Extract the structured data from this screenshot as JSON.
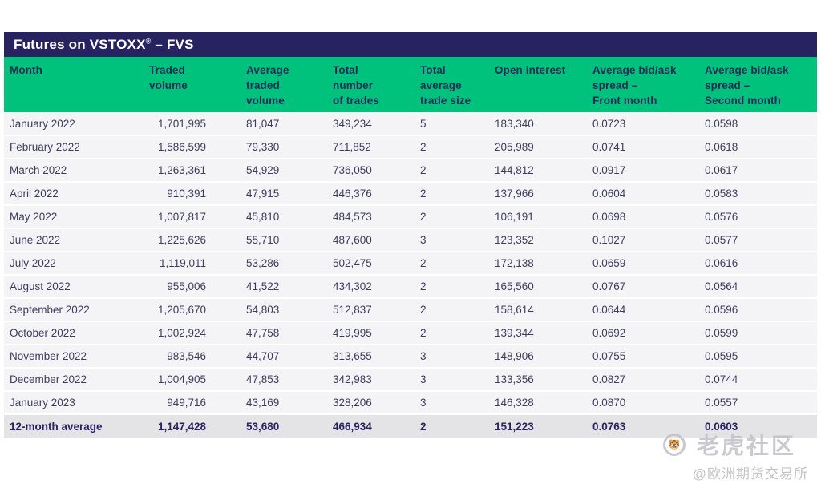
{
  "title": {
    "prefix": "Futures on VSTOXX",
    "registered_mark": "®",
    "suffix": " – FVS"
  },
  "table": {
    "columns": [
      {
        "id": "month",
        "label": "Month"
      },
      {
        "id": "traded_volume",
        "label": "Traded\nvolume"
      },
      {
        "id": "average_traded_volume",
        "label": "Average\ntraded\nvolume"
      },
      {
        "id": "total_number_of_trades",
        "label": "Total\nnumber\nof trades"
      },
      {
        "id": "total_average_trade_size",
        "label": "Total\naverage\ntrade size"
      },
      {
        "id": "open_interest",
        "label": "Open interest"
      },
      {
        "id": "avg_bid_ask_spread_front_month",
        "label": "Average bid/ask\nspread –\nFront month"
      },
      {
        "id": "avg_bid_ask_spread_second_month",
        "label": "Average bid/ask\nspread –\nSecond month"
      }
    ],
    "rows": [
      [
        "January 2022",
        "1,701,995",
        "81,047",
        "349,234",
        "5",
        "183,340",
        "0.0723",
        "0.0598"
      ],
      [
        "February 2022",
        "1,586,599",
        "79,330",
        "711,852",
        "2",
        "205,989",
        "0.0741",
        "0.0618"
      ],
      [
        "March 2022",
        "1,263,361",
        "54,929",
        "736,050",
        "2",
        "144,812",
        "0.0917",
        "0.0617"
      ],
      [
        "April 2022",
        "910,391",
        "47,915",
        "446,376",
        "2",
        "137,966",
        "0.0604",
        "0.0583"
      ],
      [
        "May 2022",
        "1,007,817",
        "45,810",
        "484,573",
        "2",
        "106,191",
        "0.0698",
        "0.0576"
      ],
      [
        "June 2022",
        "1,225,626",
        "55,710",
        "487,600",
        "3",
        "123,352",
        "0.1027",
        "0.0577"
      ],
      [
        "July 2022",
        "1,119,011",
        "53,286",
        "502,475",
        "2",
        "172,138",
        "0.0659",
        "0.0616"
      ],
      [
        "August 2022",
        "955,006",
        "41,522",
        "434,302",
        "2",
        "165,560",
        "0.0767",
        "0.0564"
      ],
      [
        "September 2022",
        "1,205,670",
        "54,803",
        "512,837",
        "2",
        "158,614",
        "0.0644",
        "0.0596"
      ],
      [
        "October 2022",
        "1,002,924",
        "47,758",
        "419,995",
        "2",
        "139,344",
        "0.0692",
        "0.0599"
      ],
      [
        "November 2022",
        "983,546",
        "44,707",
        "313,655",
        "3",
        "148,906",
        "0.0755",
        "0.0595"
      ],
      [
        "December 2022",
        "1,004,905",
        "47,853",
        "342,983",
        "3",
        "133,356",
        "0.0827",
        "0.0744"
      ],
      [
        "January 2023",
        "949,716",
        "43,169",
        "328,206",
        "3",
        "146,328",
        "0.0870",
        "0.0557"
      ]
    ],
    "average_row": [
      "12-month average",
      "1,147,428",
      "53,680",
      "466,934",
      "2",
      "151,223",
      "0.0763",
      "0.0603"
    ]
  },
  "watermark": {
    "community_name": "老虎社区",
    "handle": "@欧洲期货交易所"
  },
  "colors": {
    "title_bar_bg": "#272260",
    "header_bg": "#00c27c",
    "header_text": "#1b2b55",
    "row_bg": "#f4f4f6",
    "average_row_bg": "#e4e4e7",
    "row_text": "#3c3c5e",
    "watermark_gray": "#bcbcc4"
  }
}
